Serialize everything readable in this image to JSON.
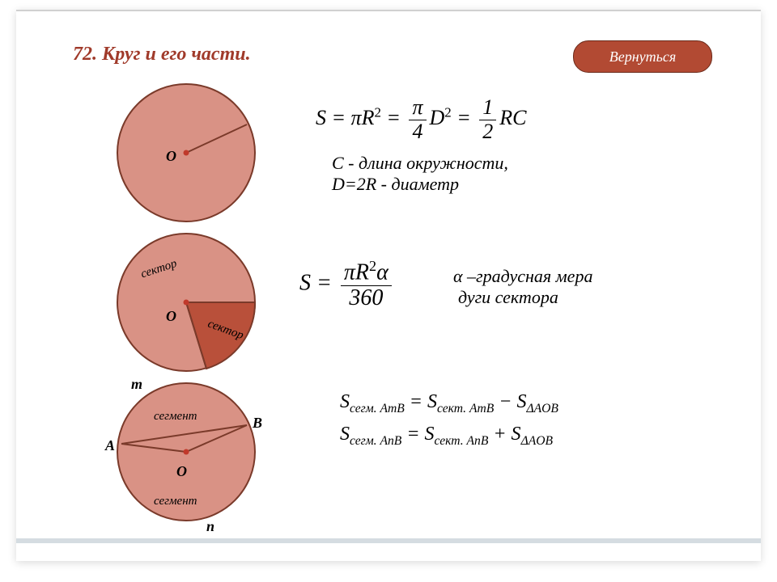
{
  "colors": {
    "title": "#a03a2a",
    "btn_bg": "#b24a33",
    "btn_text": "#ffffff",
    "circle_fill": "#d99285",
    "circle_stroke": "#7a3a2a",
    "sector_fill": "#b9503a",
    "center_dot": "#c0392b"
  },
  "title": "72. Круг и его части.",
  "back_button": "Вернуться",
  "desc1_line1": "С - длина окружности,",
  "desc1_line2": "D=2R - диаметр",
  "desc2_line1": "α –градусная мера",
  "desc2_line2": "дуги  сектора",
  "labels": {
    "O": "О",
    "A": "А",
    "B": "В",
    "m": "m",
    "n": "n",
    "sector": "сектор",
    "segment": "сегмент"
  },
  "formulas": {
    "f1_S": "S",
    "f1_eq": " = π",
    "f1_R": "R",
    "f1_sq": "2",
    "f1_eq2": " = ",
    "f1_pi": "π",
    "f1_4": "4",
    "f1_D": "D",
    "f1_eq3": " = ",
    "f1_1": "1",
    "f1_2": "2",
    "f1_RC": "RC",
    "f2_S": "S",
    "f2_eq": " = ",
    "f2_num": "πR",
    "f2_alpha": "α",
    "f2_den": "360",
    "f3_l": "S",
    "f3_sub1": "сегм. AmB",
    "f3_m": " = S",
    "f3_sub2": "сект. AmB",
    "f3_r": " − S",
    "f3_sub3": "ΔAOB",
    "f4_l": "S",
    "f4_sub1": "сегм. AnB",
    "f4_m": " = S",
    "f4_sub2": "сект. AnB",
    "f4_r": " + S",
    "f4_sub3": "ΔAOB"
  }
}
